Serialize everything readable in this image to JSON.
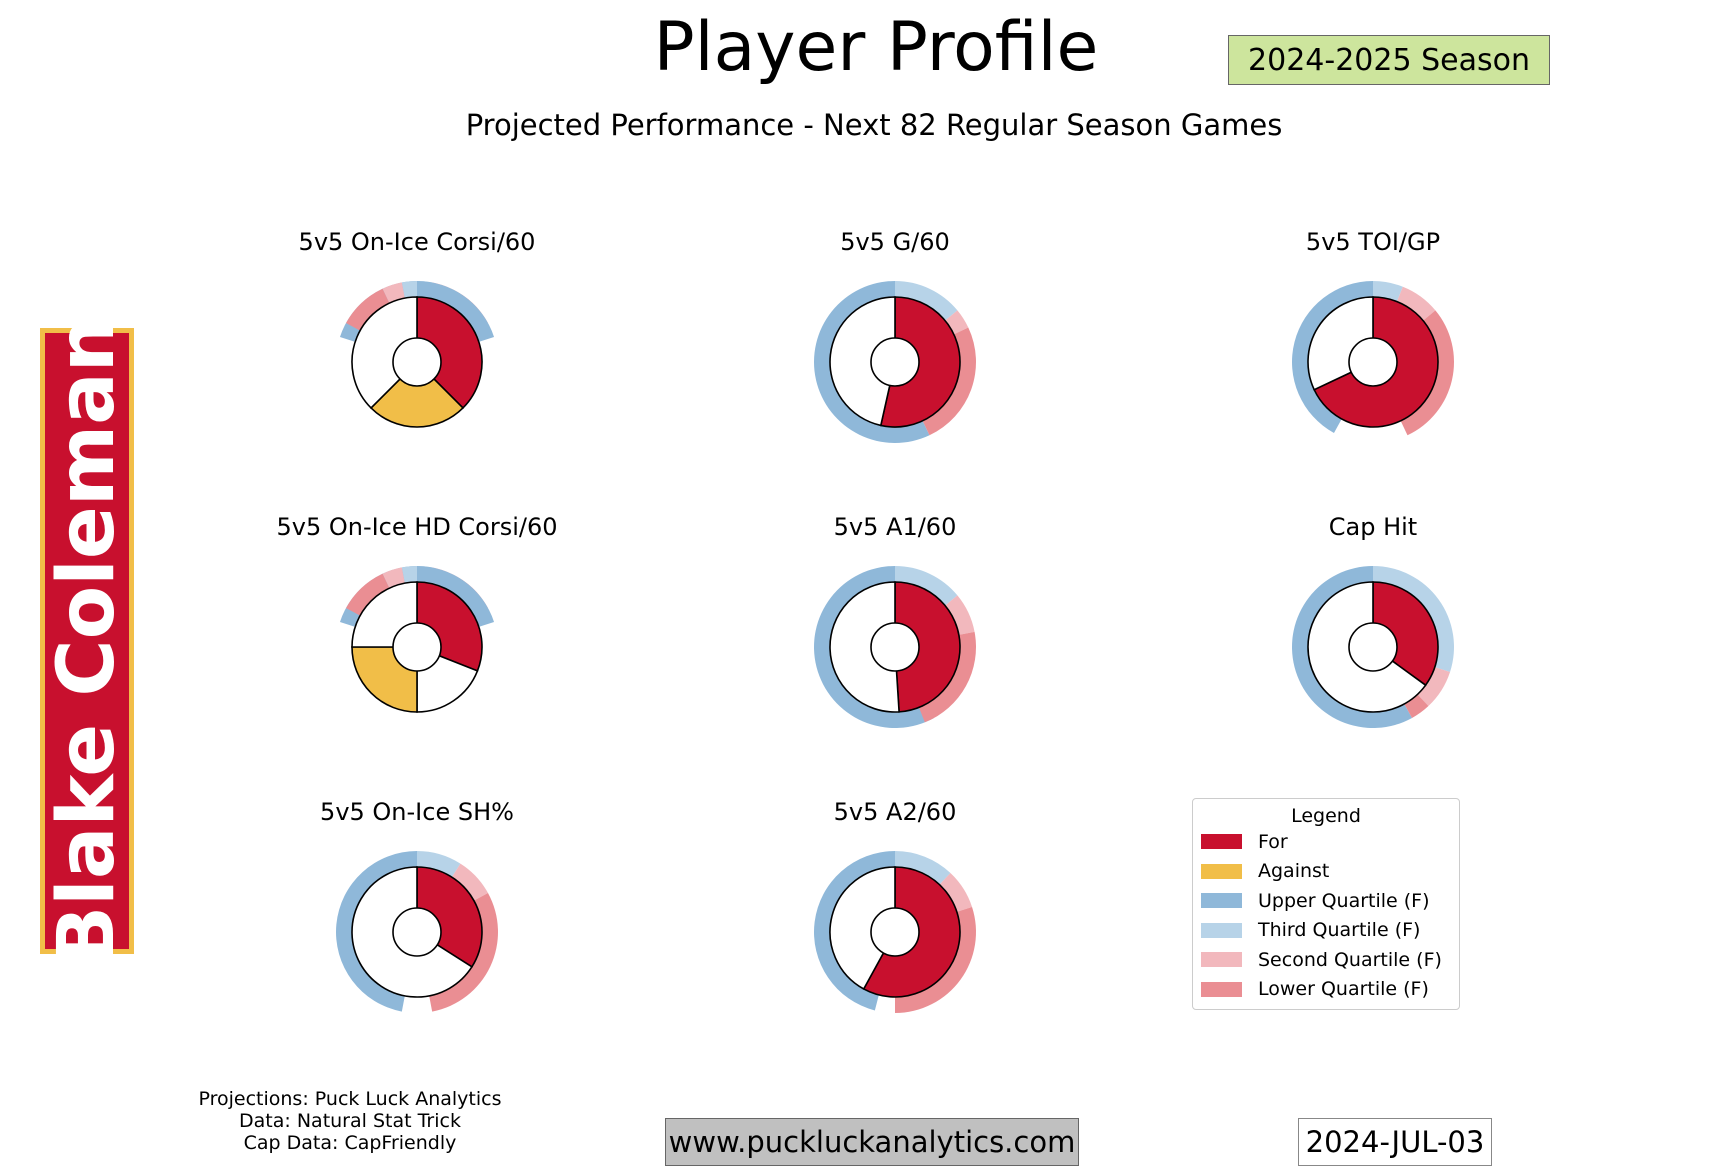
{
  "header": {
    "title": "Player Profile",
    "subtitle": "Projected Performance - Next 82 Regular Season Games",
    "season": "2024-2025 Season"
  },
  "player": {
    "name": "Blake Coleman"
  },
  "colors": {
    "for": "#c8102e",
    "against": "#f1be48",
    "upper_quartile": "#8fb8d9",
    "third_quartile": "#b7d3e8",
    "second_quartile": "#f2b8bd",
    "lower_quartile": "#ea8e93"
  },
  "chart_data": [
    {
      "type": "pie",
      "title": "5v5 On-Ice Corsi/60",
      "inner": [
        {
          "label": "For",
          "value": 0.375,
          "color": "#c8102e"
        },
        {
          "label": "Against",
          "value": 0.25,
          "color": "#f1be48"
        },
        {
          "label": "",
          "value": 0.375,
          "color": "#ffffff"
        }
      ],
      "ring": {
        "against": true,
        "sectors": [
          0.2,
          0.03,
          0.04,
          0.1
        ]
      }
    },
    {
      "type": "pie",
      "title": "5v5 G/60",
      "inner": [
        {
          "label": "For",
          "value": 0.535,
          "color": "#c8102e"
        },
        {
          "label": "",
          "value": 0.465,
          "color": "#ffffff"
        }
      ],
      "ring": {
        "against": false,
        "sectors": [
          0.57,
          0.14,
          0.04,
          0.25
        ]
      }
    },
    {
      "type": "pie",
      "title": "5v5 TOI/GP",
      "inner": [
        {
          "label": "For",
          "value": 0.68,
          "color": "#c8102e"
        },
        {
          "label": "",
          "value": 0.32,
          "color": "#ffffff"
        }
      ],
      "ring": {
        "against": false,
        "sectors": [
          0.42,
          0.06,
          0.08,
          0.29
        ]
      }
    },
    {
      "type": "pie",
      "title": "5v5 On-Ice HD Corsi/60",
      "inner": [
        {
          "label": "For",
          "value": 0.31,
          "color": "#c8102e"
        },
        {
          "label": "",
          "value": 0.19,
          "color": "#ffffff"
        },
        {
          "label": "Against",
          "value": 0.25,
          "color": "#f1be48"
        },
        {
          "label": "",
          "value": 0.25,
          "color": "#ffffff"
        }
      ],
      "ring": {
        "against": true,
        "sectors": [
          0.2,
          0.03,
          0.04,
          0.1
        ]
      }
    },
    {
      "type": "pie",
      "title": "5v5 A1/60",
      "inner": [
        {
          "label": "For",
          "value": 0.49,
          "color": "#c8102e"
        },
        {
          "label": "",
          "value": 0.51,
          "color": "#ffffff"
        }
      ],
      "ring": {
        "against": false,
        "sectors": [
          0.58,
          0.14,
          0.08,
          0.22
        ]
      }
    },
    {
      "type": "pie",
      "title": "Cap Hit",
      "inner": [
        {
          "label": "For",
          "value": 0.35,
          "color": "#c8102e"
        },
        {
          "label": "",
          "value": 0.65,
          "color": "#ffffff"
        }
      ],
      "ring": {
        "against": false,
        "sectors": [
          0.58,
          0.3,
          0.08,
          0.04
        ]
      }
    },
    {
      "type": "pie",
      "title": "5v5 On-Ice SH%",
      "inner": [
        {
          "label": "For",
          "value": 0.34,
          "color": "#c8102e"
        },
        {
          "label": "",
          "value": 0.66,
          "color": "#ffffff"
        }
      ],
      "ring": {
        "against": false,
        "sectors": [
          0.47,
          0.09,
          0.08,
          0.3
        ]
      }
    },
    {
      "type": "pie",
      "title": "5v5 A2/60",
      "inner": [
        {
          "label": "For",
          "value": 0.58,
          "color": "#c8102e"
        },
        {
          "label": "",
          "value": 0.42,
          "color": "#ffffff"
        }
      ],
      "ring": {
        "against": false,
        "sectors": [
          0.46,
          0.12,
          0.08,
          0.3
        ]
      }
    }
  ],
  "legend": {
    "title": "Legend",
    "items": [
      {
        "label": "For",
        "color": "#c8102e"
      },
      {
        "label": "Against",
        "color": "#f1be48"
      },
      {
        "label": "Upper Quartile (F)",
        "color": "#8fb8d9"
      },
      {
        "label": "Third Quartile (F)",
        "color": "#b7d3e8"
      },
      {
        "label": "Second Quartile (F)",
        "color": "#f2b8bd"
      },
      {
        "label": "Lower Quartile (F)",
        "color": "#ea8e93"
      }
    ]
  },
  "footer": {
    "credit_projections": "Projections: Puck Luck Analytics",
    "credit_data": "Data: Natural Stat Trick",
    "credit_cap": "Cap Data: CapFriendly",
    "website": "www.puckluckanalytics.com",
    "date": "2024-JUL-03"
  }
}
